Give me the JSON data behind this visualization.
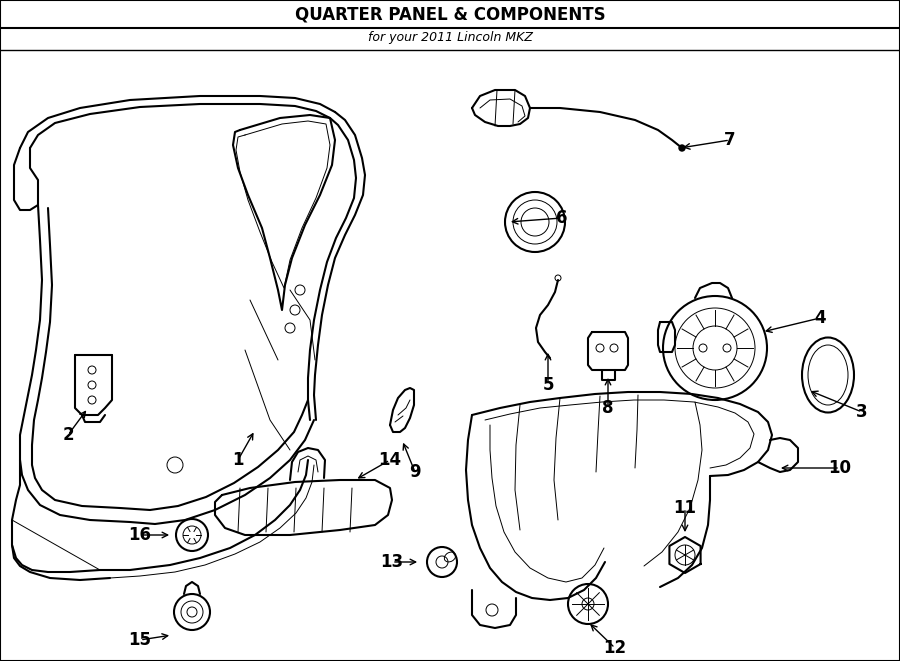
{
  "title": "QUARTER PANEL & COMPONENTS",
  "subtitle": "for your 2011 Lincoln MKZ",
  "bg_color": "#ffffff",
  "line_color": "#000000",
  "title_fontsize": 12,
  "subtitle_fontsize": 9,
  "label_fontsize": 12,
  "fig_w": 9.0,
  "fig_h": 6.61,
  "dpi": 100
}
